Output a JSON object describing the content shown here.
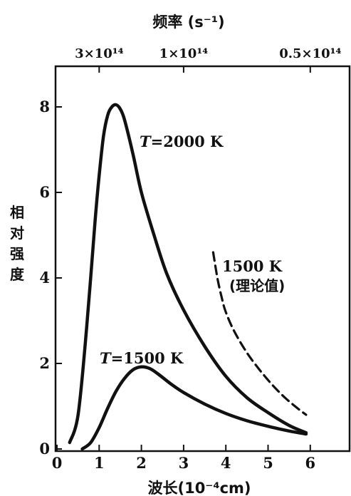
{
  "chart_data": {
    "type": "line",
    "title": "",
    "top_axis": {
      "label": "频率 (s⁻¹)",
      "ticks": [
        {
          "label": "3×10¹⁴",
          "wavelength": 1.0
        },
        {
          "label": "1×10¹⁴",
          "wavelength": 3.0
        },
        {
          "label": "0.5×10¹⁴",
          "wavelength": 6.0
        }
      ]
    },
    "xlabel": "波长(10⁻⁴cm)",
    "ylabel": "相对强度",
    "ylabel_chars": [
      "相",
      "对",
      "强",
      "度"
    ],
    "xlim": [
      0,
      7
    ],
    "ylim": [
      0,
      9
    ],
    "xticks": [
      0,
      1,
      2,
      3,
      4,
      5,
      6
    ],
    "yticks": [
      0,
      2,
      4,
      6,
      8
    ],
    "grid": false,
    "series": [
      {
        "name": "T=2000 K",
        "style": "solid",
        "x": [
          0.3,
          0.5,
          0.7,
          0.9,
          1.0,
          1.1,
          1.2,
          1.3,
          1.4,
          1.5,
          1.6,
          1.8,
          2.0,
          2.3,
          2.6,
          3.0,
          3.5,
          4.0,
          4.5,
          5.0,
          5.5,
          5.9
        ],
        "y": [
          0.15,
          0.8,
          2.8,
          5.3,
          6.4,
          7.3,
          7.8,
          8.0,
          8.05,
          7.95,
          7.7,
          6.9,
          6.0,
          5.0,
          4.1,
          3.25,
          2.4,
          1.7,
          1.2,
          0.85,
          0.55,
          0.38
        ]
      },
      {
        "name": "T=1500 K",
        "style": "solid",
        "x": [
          0.6,
          0.8,
          1.0,
          1.2,
          1.4,
          1.6,
          1.8,
          2.0,
          2.2,
          2.4,
          2.7,
          3.0,
          3.5,
          4.0,
          4.5,
          5.0,
          5.5,
          5.9
        ],
        "y": [
          0.0,
          0.15,
          0.5,
          0.95,
          1.35,
          1.65,
          1.85,
          1.92,
          1.88,
          1.75,
          1.52,
          1.32,
          1.05,
          0.83,
          0.66,
          0.53,
          0.42,
          0.35
        ]
      },
      {
        "name": "1500 K (理论值)",
        "style": "dashed",
        "x": [
          3.7,
          3.8,
          3.9,
          4.0,
          4.2,
          4.5,
          4.8,
          5.1,
          5.4,
          5.7,
          5.9
        ],
        "y": [
          4.6,
          4.0,
          3.55,
          3.2,
          2.75,
          2.25,
          1.85,
          1.5,
          1.2,
          0.95,
          0.8
        ]
      }
    ],
    "annotations": {
      "t2000": {
        "italic": "T",
        "rest": "=2000 K"
      },
      "t1500": {
        "italic": "T",
        "rest": "=1500 K"
      },
      "theory_line1": "1500 K",
      "theory_line2": "(理论值)"
    }
  }
}
